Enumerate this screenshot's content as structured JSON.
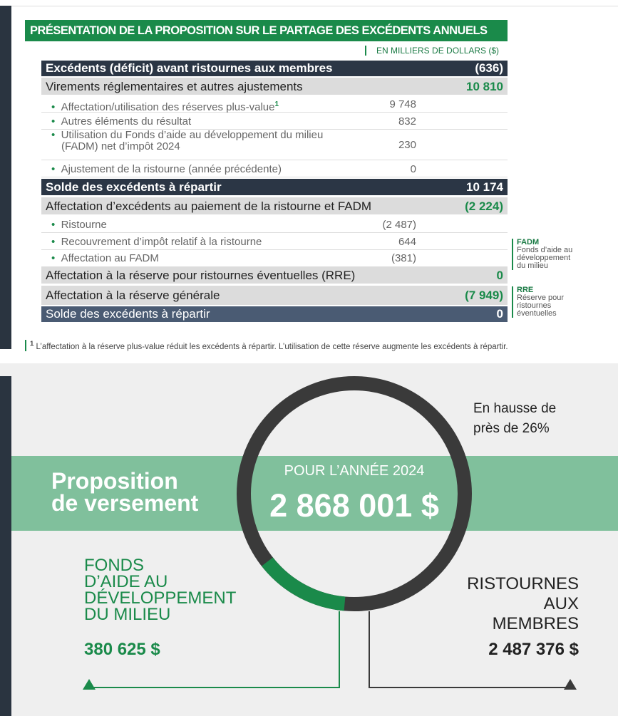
{
  "title": "PRÉSENTATION DE LA PROPOSITION SUR LE PARTAGE DES EXCÉDENTS ANNUELS",
  "unit": "EN MILLIERS DE DOLLARS ($)",
  "table": {
    "rows": [
      {
        "label": "Excédents (déficit) avant ristournes aux membres",
        "value": "(636)"
      },
      {
        "label": "Virements réglementaires et autres ajustements",
        "value": "10 810"
      },
      {
        "label": "Affectation/utilisation des réserves plus-value",
        "sup": "1",
        "value": "9 748"
      },
      {
        "label": "Autres éléments du résultat",
        "value": "832"
      },
      {
        "label": "Utilisation du Fonds d’aide au développement du milieu (FADM) net d’impôt 2024",
        "value": "230"
      },
      {
        "label": "Ajustement de la ristourne (année précédente)",
        "value": "0"
      },
      {
        "label": "Solde des excédents à répartir",
        "value": "10 174"
      },
      {
        "label": "Affectation d’excédents au paiement de la ristourne et FADM",
        "value": "(2 224)"
      },
      {
        "label": "Ristourne",
        "value": "(2 487)"
      },
      {
        "label": "Recouvrement d’impôt relatif à la ristourne",
        "value": "644"
      },
      {
        "label": "Affectation au FADM",
        "value": "(381)"
      },
      {
        "label": "Affectation à la réserve pour ristournes éventuelles (RRE)",
        "value": "0"
      },
      {
        "label": "Affectation à la réserve générale",
        "value": "(7 949)"
      },
      {
        "label": "Solde des excédents à répartir",
        "value": "0"
      }
    ]
  },
  "notes": [
    {
      "term": "FADM",
      "definition": "Fonds d’aide au développement du milieu"
    },
    {
      "term": "RRE",
      "definition": "Réserve pour ristournes éventuelles"
    }
  ],
  "footnote": {
    "marker": "1",
    "text": "L’affectation à la réserve plus-value réduit les excédents à répartir. L’utilisation de cette réserve augmente les excédents à répartir."
  },
  "infographic": {
    "increase": "En hausse de près de 26%",
    "heading": [
      "Proposition",
      "de versement"
    ],
    "year_label": "POUR L’ANNÉE 2024",
    "total": "2 868 001 $",
    "left": {
      "label": [
        "FONDS",
        "D’AIDE AU",
        "DÉVELOPPEMENT",
        "DU MILIEU"
      ],
      "amount": "380 625 $"
    },
    "right": {
      "label": [
        "RISTOURNES",
        "AUX",
        "MEMBRES"
      ],
      "amount": "2 487 376 $"
    }
  }
}
